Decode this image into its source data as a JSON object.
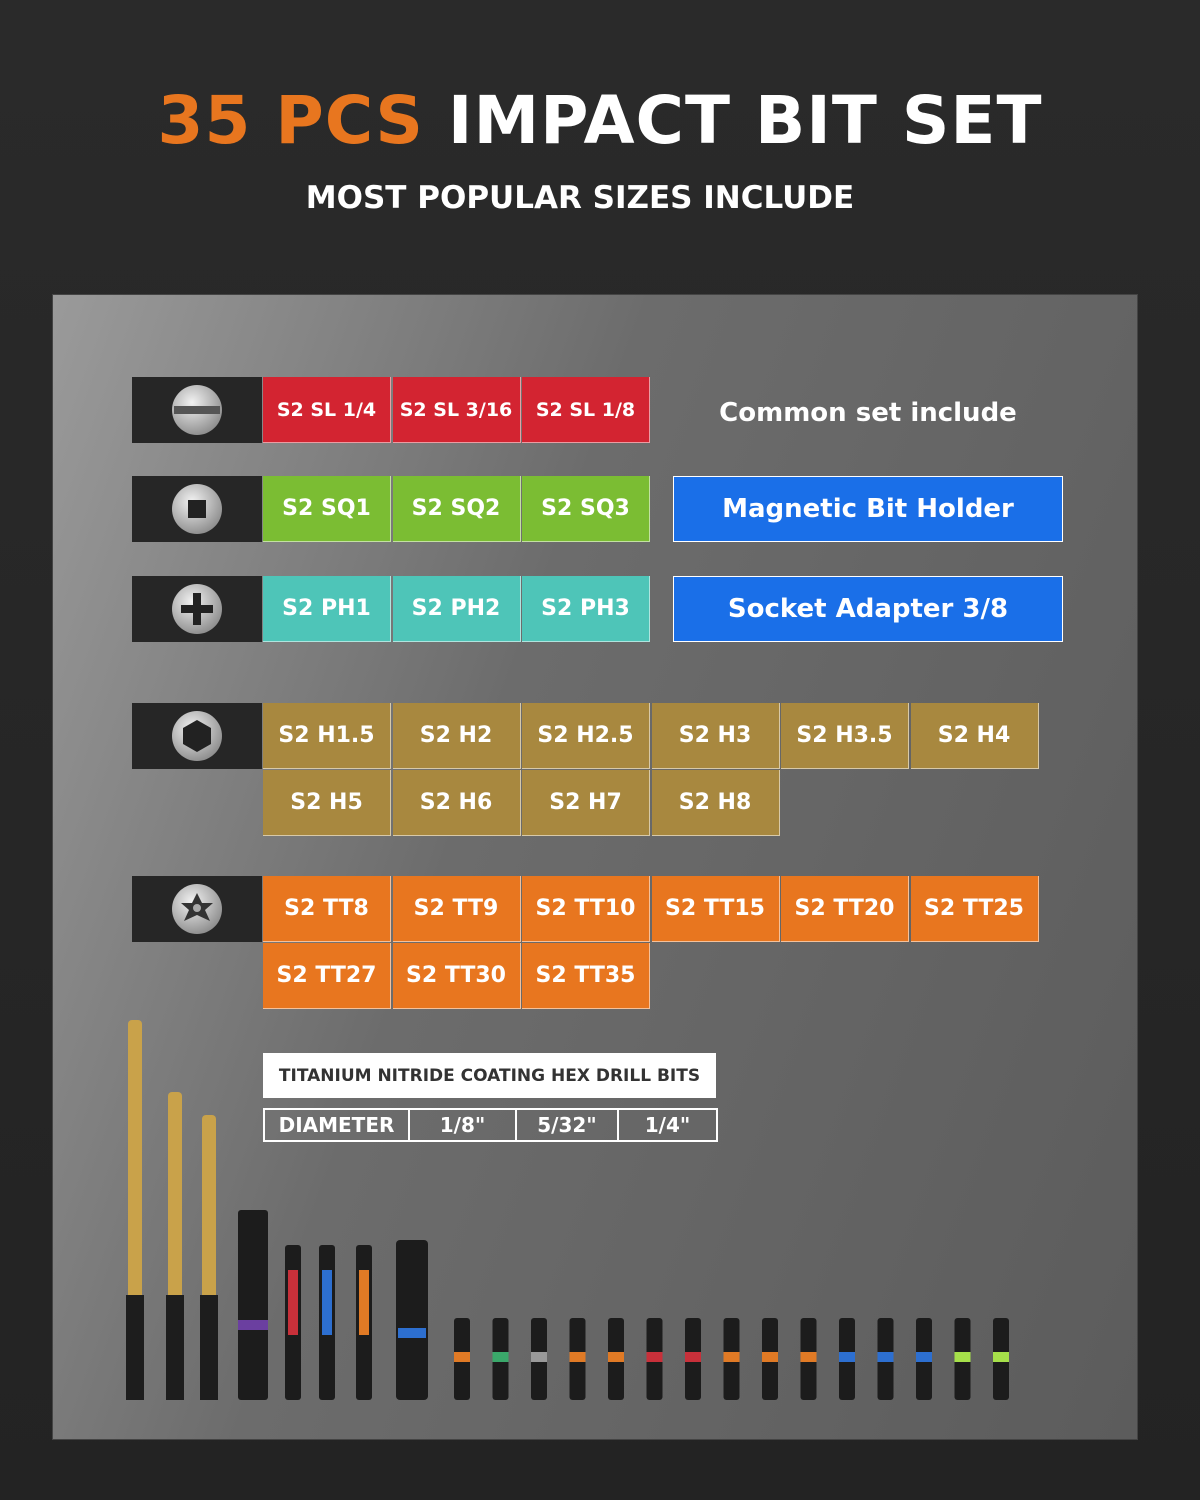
{
  "header": {
    "title_highlight": "35 PCS",
    "title_rest": "IMPACT BIT SET",
    "subtitle": "MOST POPULAR SIZES INCLUDE"
  },
  "groups": [
    {
      "items": [
        "S2 SL 1/4",
        "S2 SL 3/16",
        "S2 SL 1/8"
      ]
    },
    {
      "items": [
        "S2 SQ1",
        "S2 SQ2",
        "S2 SQ3"
      ]
    },
    {
      "items": [
        "S2 PH1",
        "S2 PH2",
        "S2 PH3"
      ]
    },
    {
      "items": [
        "S2 H1.5",
        "S2 H2",
        "S2 H2.5",
        "S2 H3",
        "S2 H3.5",
        "S2 H4",
        "S2 H5",
        "S2 H6",
        "S2 H7",
        "S2 H8"
      ]
    },
    {
      "items": [
        "S2 TT8",
        "S2 TT9",
        "S2 TT10",
        "S2 TT15",
        "S2 TT20",
        "S2 TT25",
        "S2 TT27",
        "S2 TT30",
        "S2 TT35"
      ]
    }
  ],
  "common": {
    "title": "Common set include",
    "items": [
      "Magnetic Bit Holder",
      "Socket Adapter 3/8"
    ]
  },
  "drill": {
    "title": "TITANIUM NITRIDE COATING HEX DRILL BITS",
    "row": [
      "DIAMETER",
      "1/8\"",
      "5/32\"",
      "1/4\""
    ]
  }
}
